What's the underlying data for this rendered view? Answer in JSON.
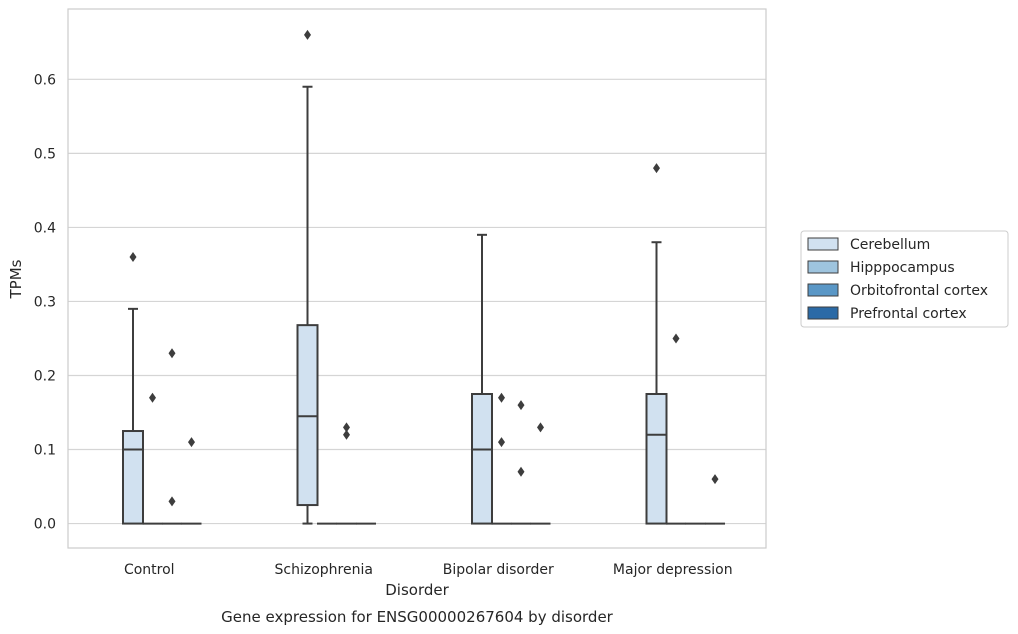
{
  "chart_data": {
    "type": "box",
    "title": "",
    "caption": "Gene expression for ENSG00000267604 by disorder",
    "xlabel": "Disorder",
    "ylabel": "TPMs",
    "ylim": [
      -0.033,
      0.695
    ],
    "yticks": [
      0.0,
      0.1,
      0.2,
      0.3,
      0.4,
      0.5,
      0.6
    ],
    "ytick_labels": [
      "0.0",
      "0.1",
      "0.2",
      "0.3",
      "0.4",
      "0.5",
      "0.6"
    ],
    "grid": "horizontal",
    "legend_position": "right",
    "categories": [
      "Control",
      "Schizophrenia",
      "Bipolar disorder",
      "Major depression"
    ],
    "series": [
      {
        "name": "Cerebellum",
        "color": "#d1e1f0",
        "boxes": [
          {
            "q1": 0.0,
            "median": 0.1,
            "q3": 0.125,
            "whisker_low": 0.0,
            "whisker_high": 0.29,
            "outliers": [
              0.36
            ]
          },
          {
            "q1": 0.025,
            "median": 0.145,
            "q3": 0.268,
            "whisker_low": 0.0,
            "whisker_high": 0.59,
            "outliers": [
              0.66
            ]
          },
          {
            "q1": 0.0,
            "median": 0.1,
            "q3": 0.175,
            "whisker_low": 0.0,
            "whisker_high": 0.39,
            "outliers": []
          },
          {
            "q1": 0.0,
            "median": 0.12,
            "q3": 0.175,
            "whisker_low": 0.0,
            "whisker_high": 0.38,
            "outliers": [
              0.48
            ]
          }
        ]
      },
      {
        "name": "Hipppocampus",
        "color": "#9ec4de",
        "boxes": [
          {
            "q1": 0.0,
            "median": 0.0,
            "q3": 0.0,
            "whisker_low": 0.0,
            "whisker_high": 0.0,
            "outliers": [
              0.17
            ]
          },
          {
            "q1": 0.0,
            "median": 0.0,
            "q3": 0.0,
            "whisker_low": 0.0,
            "whisker_high": 0.0,
            "outliers": []
          },
          {
            "q1": 0.0,
            "median": 0.0,
            "q3": 0.0,
            "whisker_low": 0.0,
            "whisker_high": 0.0,
            "outliers": [
              0.17,
              0.11
            ]
          },
          {
            "q1": 0.0,
            "median": 0.0,
            "q3": 0.0,
            "whisker_low": 0.0,
            "whisker_high": 0.0,
            "outliers": [
              0.25
            ]
          }
        ]
      },
      {
        "name": "Orbitofrontal cortex",
        "color": "#5a97c6",
        "boxes": [
          {
            "q1": 0.0,
            "median": 0.0,
            "q3": 0.0,
            "whisker_low": 0.0,
            "whisker_high": 0.0,
            "outliers": [
              0.23,
              0.03
            ]
          },
          {
            "q1": 0.0,
            "median": 0.0,
            "q3": 0.0,
            "whisker_low": 0.0,
            "whisker_high": 0.0,
            "outliers": [
              0.13,
              0.12
            ]
          },
          {
            "q1": 0.0,
            "median": 0.0,
            "q3": 0.0,
            "whisker_low": 0.0,
            "whisker_high": 0.0,
            "outliers": [
              0.16,
              0.07
            ]
          },
          {
            "q1": 0.0,
            "median": 0.0,
            "q3": 0.0,
            "whisker_low": 0.0,
            "whisker_high": 0.0,
            "outliers": []
          }
        ]
      },
      {
        "name": "Prefrontal cortex",
        "color": "#2b6aa6",
        "boxes": [
          {
            "q1": 0.0,
            "median": 0.0,
            "q3": 0.0,
            "whisker_low": 0.0,
            "whisker_high": 0.0,
            "outliers": [
              0.11
            ]
          },
          {
            "q1": 0.0,
            "median": 0.0,
            "q3": 0.0,
            "whisker_low": 0.0,
            "whisker_high": 0.0,
            "outliers": []
          },
          {
            "q1": 0.0,
            "median": 0.0,
            "q3": 0.0,
            "whisker_low": 0.0,
            "whisker_high": 0.0,
            "outliers": [
              0.13
            ]
          },
          {
            "q1": 0.0,
            "median": 0.0,
            "q3": 0.0,
            "whisker_low": 0.0,
            "whisker_high": 0.0,
            "outliers": [
              0.06
            ]
          }
        ]
      }
    ]
  }
}
